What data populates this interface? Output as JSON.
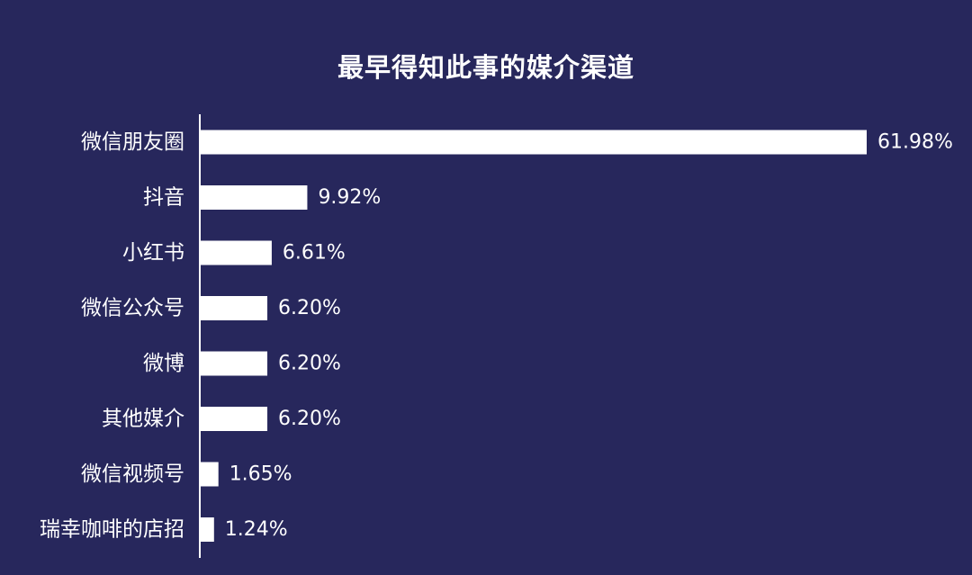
{
  "colors": {
    "background": "#27275c",
    "bar": "#ffffff",
    "axis": "#ffffff",
    "text": "#ffffff"
  },
  "chart_data": {
    "type": "bar",
    "orientation": "horizontal",
    "title": "最早得知此事的媒介渠道",
    "categories": [
      "微信朋友圈",
      "抖音",
      "小红书",
      "微信公众号",
      "微博",
      "其他媒介",
      "微信视频号",
      "瑞幸咖啡的店招"
    ],
    "values": [
      61.98,
      9.92,
      6.61,
      6.2,
      6.2,
      6.2,
      1.65,
      1.24
    ],
    "value_labels": [
      "61.98%",
      "9.92%",
      "6.61%",
      "6.20%",
      "6.20%",
      "6.20%",
      "1.65%",
      "1.24%"
    ],
    "xlim": [
      0,
      61.98
    ],
    "grid": false,
    "legend": "none"
  }
}
